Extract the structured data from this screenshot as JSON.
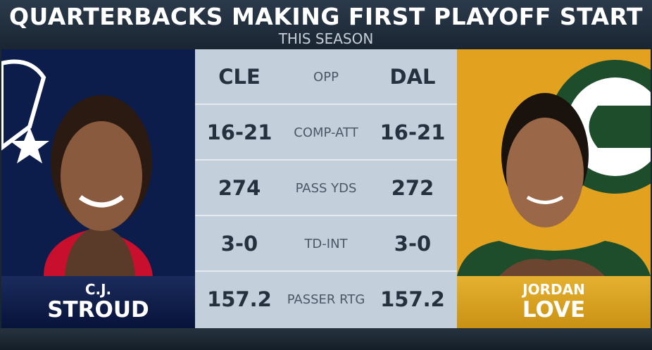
{
  "header": {
    "title": "QUARTERBACKS MAKING FIRST PLAYOFF START",
    "subtitle": "THIS SEASON"
  },
  "players": [
    {
      "first_name": "C.J.",
      "last_name": "STROUD"
    },
    {
      "first_name": "JORDAN",
      "last_name": "LOVE"
    }
  ],
  "table": {
    "rows": [
      [
        "CLE",
        "OPP",
        "DAL"
      ],
      [
        "16-21",
        "COMP-ATT",
        "16-21"
      ],
      [
        274,
        "PASS YDS",
        272
      ],
      [
        "3-0",
        "TD-INT",
        "3-0"
      ],
      [
        157.2,
        "PASSER RTG",
        157.2
      ]
    ]
  }
}
